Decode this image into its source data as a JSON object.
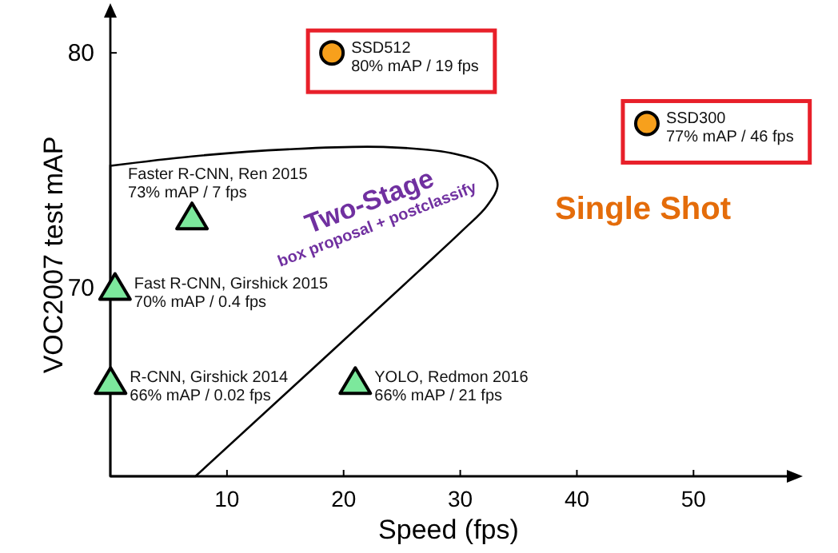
{
  "chart_data": {
    "type": "scatter",
    "xlabel": "Speed (fps)",
    "ylabel": "VOC2007 test mAP",
    "xlim": [
      0,
      58
    ],
    "ylim": [
      62,
      81.5
    ],
    "xticks": [
      10,
      20,
      30,
      40,
      50
    ],
    "yticks": [
      70,
      80
    ],
    "series": [
      {
        "color": "#f7a01c",
        "marker": "circle",
        "x": [
          19,
          46
        ],
        "values": [
          80,
          77
        ]
      },
      {
        "color": "#7ce89c",
        "marker": "triangle",
        "x": [
          7,
          0.4,
          0.02,
          21
        ],
        "values": [
          73,
          70,
          66,
          66
        ]
      }
    ],
    "annotations": [
      {
        "text": "SSD512\n80% mAP / 19 fps",
        "x": 19,
        "y": 80
      },
      {
        "text": "SSD300\n77% mAP / 46 fps",
        "x": 46,
        "y": 77
      },
      {
        "text": "Faster R-CNN, Ren 2015\n73% mAP / 7 fps",
        "x": 7,
        "y": 73
      },
      {
        "text": "Fast R-CNN, Girshick 2015\n70% mAP / 0.4 fps",
        "x": 0.4,
        "y": 70
      },
      {
        "text": "R-CNN, Girshick 2014\n66% mAP / 0.02 fps",
        "x": 0.02,
        "y": 66
      },
      {
        "text": "YOLO, Redmon 2016\n66% mAP / 21 fps",
        "x": 21,
        "y": 66
      },
      "Two-Stage",
      "box proposal + postclassify",
      "Single Shot"
    ]
  }
}
